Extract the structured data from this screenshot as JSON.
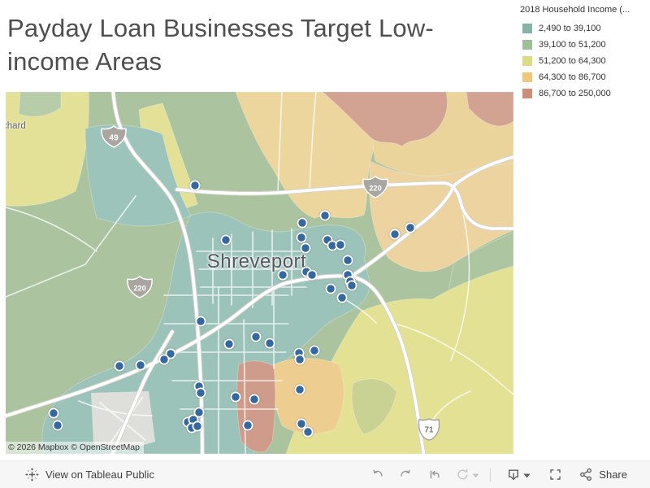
{
  "title": {
    "lines": [
      "Payday Loan Businesses Target Low-",
      "income Areas"
    ]
  },
  "legend": {
    "title": "2018 Household Income (...",
    "items": [
      {
        "label": "2,490 to 39,100",
        "color": "#86b2a8"
      },
      {
        "label": "39,100 to 51,200",
        "color": "#9fbf99"
      },
      {
        "label": "51,200 to 64,300",
        "color": "#dbda85"
      },
      {
        "label": "64,300 to 86,700",
        "color": "#efc87c"
      },
      {
        "label": "86,700 to 250,000",
        "color": "#ce8d79"
      }
    ]
  },
  "map": {
    "city_label": "Shreveport",
    "edge_label": "chard",
    "attribution": "© 2026 Mapbox © OpenStreetMap",
    "shields": [
      {
        "type": "interstate",
        "number": "49"
      },
      {
        "type": "interstate",
        "number": "220"
      },
      {
        "type": "interstate",
        "number": "220"
      },
      {
        "type": "us",
        "number": "71"
      }
    ],
    "dot_color": "#34689e",
    "dots": [
      [
        233,
        115
      ],
      [
        271,
        182
      ],
      [
        393,
        152
      ],
      [
        365,
        161
      ],
      [
        364,
        179
      ],
      [
        396,
        182
      ],
      [
        402,
        189
      ],
      [
        412,
        188
      ],
      [
        369,
        192
      ],
      [
        421,
        207
      ],
      [
        479,
        175
      ],
      [
        498,
        167
      ],
      [
        341,
        225
      ],
      [
        370,
        221
      ],
      [
        377,
        225
      ],
      [
        421,
        225
      ],
      [
        424,
        233
      ],
      [
        426,
        238
      ],
      [
        400,
        242
      ],
      [
        414,
        253
      ],
      [
        240,
        282
      ],
      [
        308,
        301
      ],
      [
        325,
        309
      ],
      [
        275,
        310
      ],
      [
        361,
        321
      ],
      [
        362,
        329
      ],
      [
        380,
        318
      ],
      [
        203,
        322
      ],
      [
        195,
        329
      ],
      [
        140,
        337
      ],
      [
        166,
        336
      ],
      [
        238,
        362
      ],
      [
        240,
        370
      ],
      [
        283,
        375
      ],
      [
        306,
        378
      ],
      [
        362,
        366
      ],
      [
        59,
        395
      ],
      [
        64,
        410
      ],
      [
        238,
        394
      ],
      [
        224,
        406
      ],
      [
        231,
        403
      ],
      [
        229,
        413
      ],
      [
        236,
        411
      ],
      [
        298,
        410
      ],
      [
        364,
        408
      ],
      [
        372,
        418
      ]
    ]
  },
  "toolbar": {
    "view_label": "View on Tableau Public",
    "share_label": "Share"
  }
}
